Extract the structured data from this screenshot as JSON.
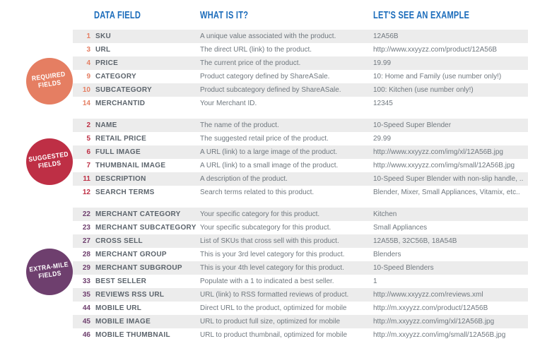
{
  "header": {
    "col_field": "DATA FIELD",
    "col_what": "WHAT IS IT?",
    "col_example": "LET'S SEE AN EXAMPLE"
  },
  "colors": {
    "header-blue": "#1b6cbb",
    "stripe": "#ececec",
    "field-name": "#5c646c",
    "body-text": "#70787f",
    "required-accent": "#e57e62",
    "suggested-accent": "#be2f45",
    "extra-mile-accent": "#6e3f6e"
  },
  "sections": [
    {
      "id": "required",
      "badge": {
        "line1": "REQUIRED",
        "line2": "FIELDS",
        "color": "#e57e62"
      },
      "rows": [
        {
          "num": "1",
          "field": "SKU",
          "what": "A unique value associated with the product.",
          "example": "12A56B"
        },
        {
          "num": "3",
          "field": "URL",
          "what": "The direct URL (link) to the product.",
          "example": "http://www.xxyyzz.com/product/12A56B"
        },
        {
          "num": "4",
          "field": "PRICE",
          "what": "The current price of the product.",
          "example": "19.99"
        },
        {
          "num": "9",
          "field": "CATEGORY",
          "what": "Product category defined by ShareASale.",
          "example": "10: Home and Family (use number only!)"
        },
        {
          "num": "10",
          "field": "SUBCATEGORY",
          "what": "Product subcategory defined by ShareASale.",
          "example": "100: Kitchen (use number only!)"
        },
        {
          "num": "14",
          "field": "MERCHANTID",
          "what": "Your Merchant ID.",
          "example": "12345"
        }
      ]
    },
    {
      "id": "suggested",
      "badge": {
        "line1": "SUGGESTED",
        "line2": "FIELDS",
        "color": "#be2f45"
      },
      "rows": [
        {
          "num": "2",
          "field": "NAME",
          "what": "The name of the product.",
          "example": "10-Speed Super Blender"
        },
        {
          "num": "5",
          "field": "RETAIL PRICE",
          "what": "The suggested retail price of the product.",
          "example": "29.99"
        },
        {
          "num": "6",
          "field": "FULL IMAGE",
          "what": "A URL (link) to a large image of the product.",
          "example": "http://www.xxyyzz.com/img/xl/12A56B.jpg"
        },
        {
          "num": "7",
          "field": "THUMBNAIL IMAGE",
          "what": "A URL (link) to a small image of the product.",
          "example": "http://www.xxyyzz.com/img/small/12A56B.jpg"
        },
        {
          "num": "11",
          "field": "DESCRIPTION",
          "what": "A description of the product.",
          "example": "10-Speed Super Blender with non-slip handle, .."
        },
        {
          "num": "12",
          "field": "SEARCH TERMS",
          "what": "Search terms related to this product.",
          "example": "Blender, Mixer, Small Appliances, Vitamix, etc.."
        }
      ]
    },
    {
      "id": "extra-mile",
      "badge": {
        "line1": "EXTRA-MILE",
        "line2": "FIELDS",
        "color": "#6e3f6e"
      },
      "rows": [
        {
          "num": "22",
          "field": "MERCHANT CATEGORY",
          "what": "Your specific category for this product.",
          "example": "Kitchen"
        },
        {
          "num": "23",
          "field": "MERCHANT SUBCATEGORY",
          "what": "Your specific subcategory for this product.",
          "example": "Small Appliances"
        },
        {
          "num": "27",
          "field": "CROSS SELL",
          "what": "List of SKUs that cross sell with this product.",
          "example": "12A55B, 32C56B, 18A54B"
        },
        {
          "num": "28",
          "field": "MERCHANT GROUP",
          "what": "This is your 3rd level category for this product.",
          "example": "Blenders"
        },
        {
          "num": "29",
          "field": "MERCHANT SUBGROUP",
          "what": "This is your 4th level category for this product.",
          "example": "10-Speed Blenders"
        },
        {
          "num": "33",
          "field": "BEST SELLER",
          "what": "Populate with a 1 to indicated a best seller.",
          "example": "1"
        },
        {
          "num": "35",
          "field": "REVIEWS RSS URL",
          "what": "URL (link) to RSS formatted reviews of product.",
          "example": "http://www.xxyyzz.com/reviews.xml"
        },
        {
          "num": "44",
          "field": "MOBILE URL",
          "what": "Direct URL to the product, optimized for mobile",
          "example": "http://m.xxyyzz.com/product/12A56B"
        },
        {
          "num": "45",
          "field": "MOBILE IMAGE",
          "what": "URL to product full size, optimized for mobile",
          "example": "http://m.xxyyzz.com/img/xl/12A56B.jpg"
        },
        {
          "num": "46",
          "field": "MOBILE THUMBNAIL",
          "what": "URL to product thumbnail, optimized for mobile",
          "example": "http://m.xxyyzz.com/img/small/12A56B.jpg"
        }
      ]
    }
  ]
}
